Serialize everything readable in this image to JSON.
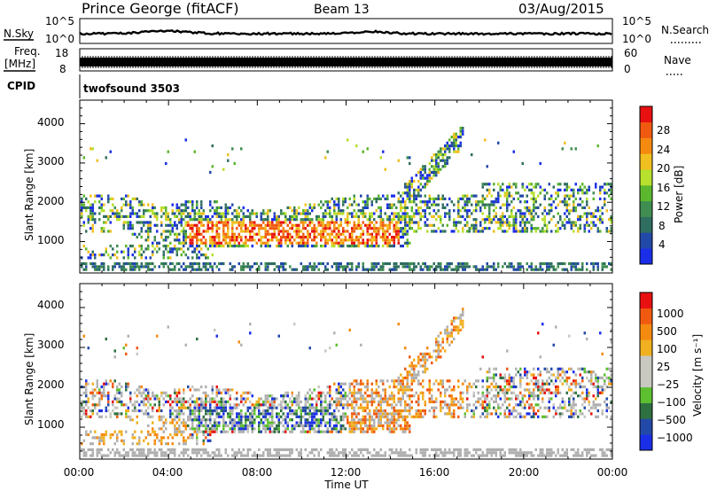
{
  "header": {
    "title": "Prince George (fitACF)",
    "beam": "Beam 13",
    "date": "03/Aug/2015"
  },
  "status_panels": {
    "nsky_label": "N.Sky",
    "nsky_ticks": [
      "10^5",
      "10^0"
    ],
    "nsearch_label": "N.Search",
    "nsearch_ticks": [
      "10^5",
      "10^0"
    ],
    "freq_label_1": "Freq.",
    "freq_label_2": "[MHz]",
    "freq_ticks": [
      "18",
      "8"
    ],
    "nave_label": "Nave",
    "nave_ticks": [
      "60",
      "0"
    ],
    "cpid_label": "CPID",
    "cpid_value": "twofsound 3503"
  },
  "colors": {
    "power_scale": [
      "#1a2ee8",
      "#2349a8",
      "#2f6e60",
      "#3f8d50",
      "#5cb72e",
      "#b8e02e",
      "#f0c020",
      "#f58a10",
      "#f05a10",
      "#e81010"
    ],
    "velocity_scale": [
      "#e81010",
      "#f05a10",
      "#f58a10",
      "#f0b020",
      "#c8c8c0",
      "#c8c8c0",
      "#5cc030",
      "#2e7040",
      "#2349a8",
      "#1a2ee8"
    ],
    "ground_scatter": "#b0b0b0"
  },
  "chart_data": [
    {
      "type": "heatmap",
      "name": "power",
      "ylabel": "Slant Range [km]",
      "y_ticks": [
        "1000",
        "2000",
        "3000",
        "4000"
      ],
      "ylim": [
        200,
        4600
      ],
      "xlim": [
        "00:00",
        "24:00"
      ],
      "colorbar_label": "Power [dB]",
      "colorbar_ticks": [
        "4",
        "8",
        "12",
        "16",
        "20",
        "24",
        "28"
      ],
      "colorbar_range": [
        0,
        30
      ]
    },
    {
      "type": "heatmap",
      "name": "velocity",
      "ylabel": "Slant Range [km]",
      "y_ticks": [
        "1000",
        "2000",
        "3000",
        "4000"
      ],
      "ylim": [
        200,
        4600
      ],
      "xlim": [
        "00:00",
        "24:00"
      ],
      "colorbar_label": "Velocity [m s⁻¹]",
      "colorbar_ticks": [
        "1000",
        "500",
        "100",
        "25",
        "−25",
        "−100",
        "−500",
        "−1000"
      ]
    }
  ],
  "x_axis": {
    "ticks": [
      "00:00",
      "04:00",
      "08:00",
      "12:00",
      "16:00",
      "20:00",
      "00:00"
    ],
    "label": "Time UT"
  }
}
